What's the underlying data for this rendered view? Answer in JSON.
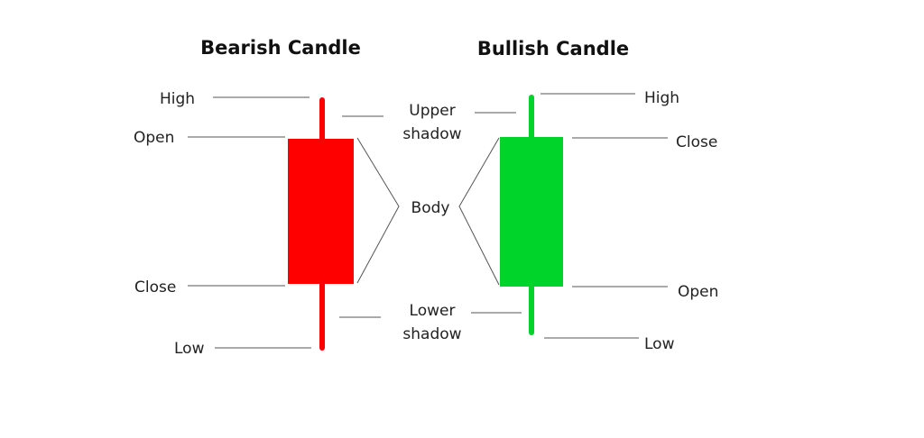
{
  "colors": {
    "bearish": "#ff0000",
    "bullish": "#00d42a",
    "text": "#222222",
    "leader": "#555555",
    "background": "#ffffff"
  },
  "bearish": {
    "title": "Bearish Candle",
    "labels": {
      "high": "High",
      "open": "Open",
      "close": "Close",
      "low": "Low"
    }
  },
  "bullish": {
    "title": "Bullish Candle",
    "labels": {
      "high": "High",
      "close": "Close",
      "open": "Open",
      "low": "Low"
    }
  },
  "center": {
    "upper_shadow": [
      "Upper",
      "shadow"
    ],
    "body": "Body",
    "lower_shadow": [
      "Lower",
      "shadow"
    ]
  }
}
